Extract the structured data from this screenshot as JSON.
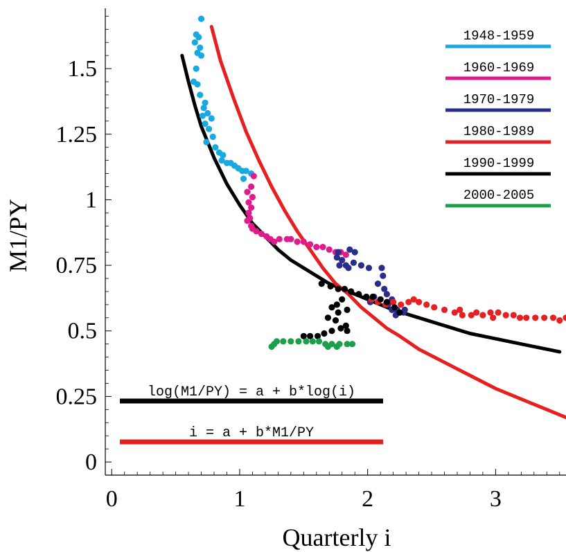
{
  "chart_data": {
    "type": "scatter",
    "title": "",
    "xlabel": "Quarterly i",
    "ylabel": "M1/PY",
    "xlim": [
      -0.05,
      3.55
    ],
    "ylim": [
      -0.05,
      1.73
    ],
    "grid": false,
    "legend_placement": "top-right",
    "x_ticks": [
      {
        "value": 0,
        "label": "0"
      },
      {
        "value": 1,
        "label": "1"
      },
      {
        "value": 2,
        "label": "2"
      },
      {
        "value": 3,
        "label": "3"
      }
    ],
    "y_ticks": [
      {
        "value": 0,
        "label": "0"
      },
      {
        "value": 0.25,
        "label": "0.25"
      },
      {
        "value": 0.5,
        "label": "0.5"
      },
      {
        "value": 0.75,
        "label": "0.75"
      },
      {
        "value": 1,
        "label": "1"
      },
      {
        "value": 1.25,
        "label": "1.25"
      },
      {
        "value": 1.5,
        "label": "1.5"
      }
    ],
    "series": [
      {
        "name": "1948-1959",
        "color": "#19a9e1",
        "points": [
          [
            0.7,
            1.69
          ],
          [
            0.66,
            1.63
          ],
          [
            0.68,
            1.62
          ],
          [
            0.65,
            1.6
          ],
          [
            0.69,
            1.58
          ],
          [
            0.67,
            1.56
          ],
          [
            0.7,
            1.55
          ],
          [
            0.66,
            1.5
          ],
          [
            0.64,
            1.45
          ],
          [
            0.67,
            1.44
          ],
          [
            0.69,
            1.4
          ],
          [
            0.73,
            1.37
          ],
          [
            0.72,
            1.35
          ],
          [
            0.75,
            1.33
          ],
          [
            0.71,
            1.32
          ],
          [
            0.78,
            1.31
          ],
          [
            0.73,
            1.29
          ],
          [
            0.76,
            1.27
          ],
          [
            0.79,
            1.24
          ],
          [
            0.74,
            1.22
          ],
          [
            0.81,
            1.2
          ],
          [
            0.84,
            1.18
          ],
          [
            0.87,
            1.17
          ],
          [
            0.86,
            1.15
          ],
          [
            0.9,
            1.14
          ],
          [
            0.93,
            1.14
          ],
          [
            0.96,
            1.13
          ],
          [
            0.99,
            1.12
          ],
          [
            1.02,
            1.11
          ],
          [
            1.05,
            1.11
          ],
          [
            1.09,
            1.1
          ],
          [
            1.03,
            1.08
          ]
        ]
      },
      {
        "name": "1960-1969",
        "color": "#e01c8c",
        "points": [
          [
            1.11,
            1.09
          ],
          [
            1.09,
            1.05
          ],
          [
            1.06,
            1.03
          ],
          [
            1.1,
            1.01
          ],
          [
            1.07,
            0.99
          ],
          [
            1.09,
            0.97
          ],
          [
            1.07,
            0.95
          ],
          [
            1.08,
            0.93
          ],
          [
            1.06,
            0.92
          ],
          [
            1.09,
            0.9
          ],
          [
            1.1,
            0.89
          ],
          [
            1.13,
            0.88
          ],
          [
            1.17,
            0.87
          ],
          [
            1.21,
            0.86
          ],
          [
            1.24,
            0.85
          ],
          [
            1.27,
            0.84
          ],
          [
            1.31,
            0.85
          ],
          [
            1.37,
            0.85
          ],
          [
            1.4,
            0.85
          ],
          [
            1.45,
            0.84
          ],
          [
            1.5,
            0.84
          ],
          [
            1.55,
            0.83
          ],
          [
            1.6,
            0.82
          ],
          [
            1.65,
            0.82
          ],
          [
            1.7,
            0.81
          ],
          [
            1.75,
            0.8
          ],
          [
            1.79,
            0.8
          ],
          [
            1.83,
            0.79
          ]
        ]
      },
      {
        "name": "1970-1979",
        "color": "#2a2d8a",
        "points": [
          [
            1.77,
            0.8
          ],
          [
            1.86,
            0.81
          ],
          [
            1.9,
            0.8
          ],
          [
            1.76,
            0.78
          ],
          [
            1.8,
            0.77
          ],
          [
            1.83,
            0.75
          ],
          [
            1.78,
            0.75
          ],
          [
            1.89,
            0.76
          ],
          [
            1.95,
            0.75
          ],
          [
            1.85,
            0.74
          ],
          [
            2.01,
            0.74
          ],
          [
            2.11,
            0.74
          ],
          [
            2.12,
            0.71
          ],
          [
            2.08,
            0.68
          ],
          [
            2.13,
            0.66
          ],
          [
            2.15,
            0.64
          ],
          [
            2.05,
            0.63
          ],
          [
            2.19,
            0.62
          ],
          [
            2.02,
            0.61
          ],
          [
            2.16,
            0.6
          ],
          [
            2.19,
            0.58
          ],
          [
            2.23,
            0.58
          ],
          [
            2.25,
            0.57
          ],
          [
            2.22,
            0.56
          ],
          [
            2.28,
            0.57
          ],
          [
            2.29,
            0.58
          ]
        ]
      },
      {
        "name": "1980-1989",
        "color": "#e62020",
        "points": [
          [
            2.03,
            0.62
          ],
          [
            2.08,
            0.61
          ],
          [
            2.14,
            0.6
          ],
          [
            2.2,
            0.61
          ],
          [
            2.26,
            0.6
          ],
          [
            2.32,
            0.61
          ],
          [
            2.36,
            0.62
          ],
          [
            2.4,
            0.61
          ],
          [
            2.46,
            0.6
          ],
          [
            2.52,
            0.59
          ],
          [
            2.6,
            0.58
          ],
          [
            2.68,
            0.57
          ],
          [
            2.74,
            0.56
          ],
          [
            2.81,
            0.56
          ],
          [
            2.85,
            0.57
          ],
          [
            2.9,
            0.56
          ],
          [
            2.96,
            0.57
          ],
          [
            3.02,
            0.57
          ],
          [
            3.08,
            0.56
          ],
          [
            3.14,
            0.56
          ],
          [
            3.19,
            0.55
          ],
          [
            3.24,
            0.55
          ],
          [
            3.31,
            0.55
          ],
          [
            3.38,
            0.55
          ],
          [
            3.45,
            0.55
          ],
          [
            3.5,
            0.54
          ],
          [
            3.55,
            0.55
          ],
          [
            2.72,
            0.58
          ],
          [
            2.98,
            0.55
          ]
        ]
      },
      {
        "name": "1990-1999",
        "color": "#000000",
        "points": [
          [
            1.64,
            0.68
          ],
          [
            1.71,
            0.67
          ],
          [
            1.77,
            0.66
          ],
          [
            1.82,
            0.66
          ],
          [
            1.87,
            0.65
          ],
          [
            1.93,
            0.64
          ],
          [
            1.99,
            0.63
          ],
          [
            2.04,
            0.63
          ],
          [
            2.1,
            0.62
          ],
          [
            2.15,
            0.61
          ],
          [
            2.21,
            0.59
          ],
          [
            2.25,
            0.57
          ],
          [
            1.8,
            0.62
          ],
          [
            1.76,
            0.6
          ],
          [
            1.72,
            0.59
          ],
          [
            1.84,
            0.58
          ],
          [
            1.77,
            0.57
          ],
          [
            1.69,
            0.55
          ],
          [
            1.75,
            0.54
          ],
          [
            1.83,
            0.52
          ],
          [
            1.79,
            0.51
          ],
          [
            1.72,
            0.5
          ],
          [
            1.66,
            0.49
          ],
          [
            1.61,
            0.48
          ],
          [
            1.55,
            0.48
          ],
          [
            1.5,
            0.48
          ],
          [
            1.84,
            0.5
          ]
        ]
      },
      {
        "name": "2000-2005",
        "color": "#1e9e4a",
        "points": [
          [
            1.29,
            0.46
          ],
          [
            1.34,
            0.46
          ],
          [
            1.4,
            0.46
          ],
          [
            1.46,
            0.46
          ],
          [
            1.52,
            0.46
          ],
          [
            1.57,
            0.46
          ],
          [
            1.62,
            0.46
          ],
          [
            1.67,
            0.45
          ],
          [
            1.72,
            0.45
          ],
          [
            1.78,
            0.45
          ],
          [
            1.84,
            0.45
          ],
          [
            1.88,
            0.45
          ],
          [
            1.27,
            0.45
          ],
          [
            1.25,
            0.44
          ],
          [
            1.69,
            0.44
          ],
          [
            1.76,
            0.44
          ]
        ]
      }
    ],
    "fits": [
      {
        "label": "log(M1/PY) = a + b*log(i)",
        "color": "#000000",
        "points": [
          [
            0.55,
            1.55
          ],
          [
            0.6,
            1.45
          ],
          [
            0.65,
            1.36
          ],
          [
            0.7,
            1.28
          ],
          [
            0.75,
            1.22
          ],
          [
            0.8,
            1.16
          ],
          [
            0.9,
            1.06
          ],
          [
            1.0,
            0.98
          ],
          [
            1.1,
            0.91
          ],
          [
            1.2,
            0.86
          ],
          [
            1.3,
            0.81
          ],
          [
            1.4,
            0.77
          ],
          [
            1.5,
            0.74
          ],
          [
            1.6,
            0.71
          ],
          [
            1.7,
            0.68
          ],
          [
            1.8,
            0.66
          ],
          [
            1.9,
            0.64
          ],
          [
            2.0,
            0.62
          ],
          [
            2.2,
            0.58
          ],
          [
            2.4,
            0.55
          ],
          [
            2.6,
            0.52
          ],
          [
            2.8,
            0.49
          ],
          [
            3.0,
            0.47
          ],
          [
            3.2,
            0.45
          ],
          [
            3.4,
            0.43
          ],
          [
            3.5,
            0.42
          ]
        ]
      },
      {
        "label": "i = a + b*M1/PY",
        "color": "#e62020",
        "points": [
          [
            0.78,
            1.66
          ],
          [
            0.85,
            1.53
          ],
          [
            0.95,
            1.39
          ],
          [
            1.05,
            1.26
          ],
          [
            1.15,
            1.15
          ],
          [
            1.25,
            1.05
          ],
          [
            1.35,
            0.96
          ],
          [
            1.45,
            0.88
          ],
          [
            1.55,
            0.81
          ],
          [
            1.65,
            0.74
          ],
          [
            1.75,
            0.68
          ],
          [
            1.85,
            0.64
          ],
          [
            1.95,
            0.59
          ],
          [
            2.05,
            0.55
          ],
          [
            2.15,
            0.51
          ],
          [
            2.25,
            0.48
          ],
          [
            2.4,
            0.43
          ],
          [
            2.6,
            0.38
          ],
          [
            2.8,
            0.33
          ],
          [
            3.0,
            0.28
          ],
          [
            3.2,
            0.24
          ],
          [
            3.4,
            0.2
          ],
          [
            3.55,
            0.17
          ]
        ]
      }
    ]
  }
}
